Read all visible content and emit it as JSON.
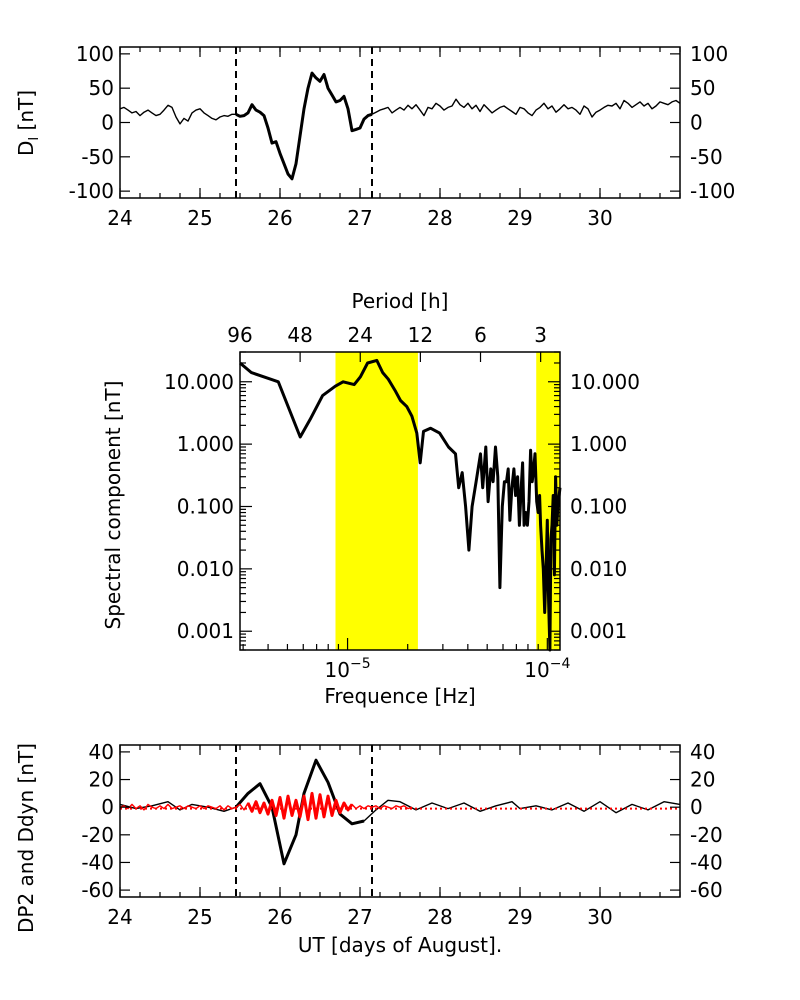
{
  "chart_data": [
    {
      "type": "line",
      "ylabel": "D_I [nT]",
      "ylabel_main": "D",
      "ylabel_sub": "I",
      "ylabel_unit": "[nT]",
      "xlim": [
        24,
        31
      ],
      "ylim": [
        -110,
        110
      ],
      "xticks": [
        24,
        25,
        26,
        27,
        28,
        29,
        30
      ],
      "xtick_labels": [
        "24",
        "25",
        "26",
        "27",
        "28",
        "29",
        "30"
      ],
      "yticks": [
        100,
        50,
        0,
        -50,
        -100
      ],
      "ytick_labels": [
        "100",
        "50",
        "0",
        "-50",
        "-100"
      ],
      "vlines": [
        25.45,
        27.15
      ],
      "series": [
        {
          "color": "#000000",
          "x": [
            24.0,
            24.05,
            24.1,
            24.15,
            24.2,
            24.25,
            24.3,
            24.35,
            24.4,
            24.45,
            24.5,
            24.55,
            24.6,
            24.65,
            24.7,
            24.75,
            24.8,
            24.85,
            24.9,
            24.95,
            25.0,
            25.05,
            25.1,
            25.15,
            25.2,
            25.25,
            25.3,
            25.35,
            25.4,
            25.45,
            25.5,
            25.55,
            25.6,
            25.65,
            25.7,
            25.75,
            25.8,
            25.85,
            25.9,
            25.95,
            26.0,
            26.05,
            26.1,
            26.15,
            26.2,
            26.25,
            26.3,
            26.35,
            26.4,
            26.45,
            26.5,
            26.55,
            26.6,
            26.65,
            26.7,
            26.75,
            26.8,
            26.85,
            26.9,
            26.95,
            27.0,
            27.05,
            27.1,
            27.15,
            27.2,
            27.25,
            27.3,
            27.35,
            27.4,
            27.45,
            27.5,
            27.55,
            27.6,
            27.65,
            27.7,
            27.75,
            27.8,
            27.85,
            27.9,
            27.95,
            28.0,
            28.05,
            28.1,
            28.15,
            28.2,
            28.25,
            28.3,
            28.35,
            28.4,
            28.45,
            28.5,
            28.55,
            28.6,
            28.65,
            28.7,
            28.75,
            28.8,
            28.85,
            28.9,
            28.95,
            29.0,
            29.05,
            29.1,
            29.15,
            29.2,
            29.25,
            29.3,
            29.35,
            29.4,
            29.45,
            29.5,
            29.55,
            29.6,
            29.65,
            29.7,
            29.75,
            29.8,
            29.85,
            29.9,
            29.95,
            30.0,
            30.05,
            30.1,
            30.15,
            30.2,
            30.25,
            30.3,
            30.35,
            30.4,
            30.45,
            30.5,
            30.55,
            30.6,
            30.65,
            30.7,
            30.75,
            30.8,
            30.85,
            30.9,
            30.95,
            31.0
          ],
          "y": [
            20,
            22,
            18,
            14,
            16,
            10,
            15,
            18,
            14,
            10,
            12,
            18,
            25,
            22,
            8,
            -2,
            6,
            2,
            14,
            18,
            20,
            14,
            10,
            6,
            4,
            8,
            10,
            9,
            12,
            12,
            9,
            10,
            14,
            26,
            18,
            15,
            10,
            -8,
            -30,
            -28,
            -45,
            -60,
            -75,
            -82,
            -60,
            -20,
            20,
            50,
            72,
            65,
            60,
            70,
            50,
            40,
            30,
            32,
            38,
            20,
            -12,
            -10,
            -8,
            5,
            10,
            12,
            15,
            18,
            20,
            22,
            14,
            18,
            22,
            18,
            25,
            20,
            26,
            18,
            10,
            22,
            20,
            28,
            24,
            18,
            22,
            24,
            34,
            26,
            22,
            28,
            20,
            25,
            16,
            26,
            20,
            14,
            18,
            22,
            24,
            20,
            16,
            12,
            22,
            20,
            14,
            10,
            18,
            22,
            28,
            20,
            24,
            15,
            20,
            26,
            20,
            22,
            18,
            12,
            24,
            20,
            8,
            15,
            18,
            22,
            25,
            24,
            28,
            20,
            32,
            28,
            22,
            26,
            30,
            24,
            28,
            20,
            24,
            30,
            28,
            26,
            30,
            32,
            28
          ]
        }
      ]
    },
    {
      "type": "line",
      "ylabel": "Spectral component [nT]",
      "xlabel": "Frequence [Hz]",
      "xlabel_top": "Period [h]",
      "xscale": "log",
      "yscale": "log",
      "xlim": [
        2.894e-06,
        0.00011574
      ],
      "ylim": [
        0.0005,
        30
      ],
      "yticks": [
        10,
        1,
        0.1,
        0.01,
        0.001
      ],
      "ytick_labels": [
        "10.000",
        "1.000",
        "0.100",
        "0.010",
        "0.001"
      ],
      "xticks": [
        1e-05,
        0.0001
      ],
      "xtick_labels": [
        "10",
        "10"
      ],
      "xtick_exp": "−5,−4",
      "xtick_exponents": [
        "−5",
        "−4"
      ],
      "top_ticks_hours": [
        96,
        48,
        24,
        12,
        6,
        3
      ],
      "top_tick_labels": [
        "96",
        "48",
        "24",
        "12",
        "6",
        "3"
      ],
      "shaded_bands": [
        {
          "x0": 8.7e-06,
          "x1": 2.25e-05,
          "color": "#ffff00"
        },
        {
          "x0": 8.8e-05,
          "x1": 0.00011574,
          "color": "#ffff00"
        }
      ],
      "series": [
        {
          "color": "#000000",
          "x": [
            2.894e-06,
            3.3e-06,
            4.5e-06,
            5.79e-06,
            6.5e-06,
            7.5e-06,
            8.68e-06,
            9.5e-06,
            1.08e-05,
            1.16e-05,
            1.26e-05,
            1.4e-05,
            1.5e-05,
            1.6e-05,
            1.74e-05,
            1.84e-05,
            1.98e-05,
            2.1e-05,
            2.22e-05,
            2.31e-05,
            2.4e-05,
            2.6e-05,
            2.89e-05,
            3.2e-05,
            3.47e-05,
            3.6e-05,
            3.75e-05,
            3.9e-05,
            4.05e-05,
            4.2e-05,
            4.4e-05,
            4.63e-05,
            4.75e-05,
            4.92e-05,
            5.05e-05,
            5.21e-05,
            5.35e-05,
            5.5e-05,
            5.65e-05,
            5.79e-05,
            5.95e-05,
            6.1e-05,
            6.25e-05,
            6.37e-05,
            6.5e-05,
            6.65e-05,
            6.8e-05,
            6.94e-05,
            7.1e-05,
            7.25e-05,
            7.4e-05,
            7.52e-05,
            7.65e-05,
            7.8e-05,
            7.95e-05,
            8.1e-05,
            8.25e-05,
            8.4e-05,
            8.55e-05,
            8.68e-05,
            8.85e-05,
            9e-05,
            9.15e-05,
            9.26e-05,
            9.4e-05,
            9.55e-05,
            9.7e-05,
            9.84e-05,
            0.0001,
            0.0001015,
            0.000103,
            0.0001042,
            0.0001055,
            0.000107,
            0.0001085,
            0.00011,
            0.0001115,
            0.000113,
            0.00011574
          ],
          "y": [
            20,
            14,
            10,
            1.3,
            2.5,
            6,
            8.5,
            10,
            9,
            12,
            20,
            22,
            14,
            11,
            7,
            5,
            4,
            2.8,
            1.5,
            0.5,
            1.6,
            1.8,
            1.5,
            0.9,
            0.7,
            0.2,
            0.35,
            0.1,
            0.02,
            0.1,
            0.25,
            0.7,
            0.2,
            0.9,
            0.12,
            0.4,
            0.25,
            0.9,
            0.3,
            0.005,
            0.1,
            0.25,
            0.25,
            0.4,
            0.06,
            0.2,
            0.4,
            0.15,
            0.3,
            0.05,
            0.2,
            0.5,
            0.05,
            0.08,
            0.05,
            0.12,
            0.8,
            0.25,
            0.4,
            0.7,
            0.12,
            0.08,
            0.15,
            0.05,
            0.02,
            0.01,
            0.002,
            0.008,
            0.06,
            0.003,
            0.0005,
            0.03,
            0.05,
            0.15,
            0.008,
            0.3,
            0.05,
            0.1,
            0.2
          ]
        }
      ]
    },
    {
      "type": "line",
      "ylabel": "DP2 and Ddyn [nT]",
      "xlabel": "UT [days of August].",
      "xlim": [
        24,
        31
      ],
      "ylim": [
        -65,
        45
      ],
      "xticks": [
        24,
        25,
        26,
        27,
        28,
        29,
        30
      ],
      "xtick_labels": [
        "24",
        "25",
        "26",
        "27",
        "28",
        "29",
        "30"
      ],
      "yticks": [
        40,
        20,
        0,
        -20,
        -40,
        -60
      ],
      "ytick_labels": [
        "40",
        "20",
        "0",
        "-20",
        "-40",
        "-60"
      ],
      "vlines": [
        25.45,
        27.15
      ],
      "series": [
        {
          "color": "#000000",
          "x": [
            24.0,
            24.2,
            24.4,
            24.6,
            24.75,
            24.9,
            25.1,
            25.3,
            25.45,
            25.6,
            25.75,
            25.9,
            26.05,
            26.2,
            26.3,
            26.45,
            26.6,
            26.75,
            26.9,
            27.05,
            27.2,
            27.35,
            27.5,
            27.7,
            27.9,
            28.1,
            28.3,
            28.5,
            28.7,
            28.9,
            29.0,
            29.2,
            29.4,
            29.6,
            29.8,
            30.0,
            30.2,
            30.4,
            30.6,
            30.8,
            31.0
          ],
          "y": [
            2,
            -1,
            1,
            4,
            -2,
            2,
            0,
            -3,
            0,
            10,
            17,
            0,
            -41,
            -20,
            10,
            34,
            18,
            -5,
            -12,
            -10,
            -2,
            5,
            4,
            -2,
            3,
            -1,
            3,
            -3,
            1,
            4,
            -1,
            1,
            -2,
            3,
            -3,
            4,
            -4,
            2,
            -2,
            4,
            2
          ]
        },
        {
          "color": "#ff0000",
          "x": [
            24.0,
            24.05,
            24.1,
            24.15,
            24.2,
            24.25,
            24.3,
            24.35,
            24.4,
            24.45,
            24.5,
            24.55,
            24.6,
            24.65,
            24.7,
            24.75,
            24.8,
            24.85,
            24.9,
            24.95,
            25.0,
            25.05,
            25.1,
            25.15,
            25.2,
            25.25,
            25.3,
            25.35,
            25.4,
            25.45,
            25.5,
            25.55,
            25.6,
            25.65,
            25.7,
            25.75,
            25.8,
            25.85,
            25.9,
            25.95,
            26.0,
            26.05,
            26.1,
            26.15,
            26.2,
            26.25,
            26.3,
            26.35,
            26.4,
            26.45,
            26.5,
            26.55,
            26.6,
            26.65,
            26.7,
            26.75,
            26.8,
            26.85,
            26.9,
            26.95,
            27.0,
            27.05,
            27.1,
            27.15,
            27.2,
            27.25,
            27.3,
            27.35,
            27.4,
            27.45,
            27.5,
            27.55,
            27.6,
            27.65
          ],
          "y": [
            0,
            1,
            -1,
            2,
            -1,
            1,
            -2,
            2,
            0,
            -1,
            1,
            -1,
            2,
            -1,
            0,
            1,
            -1,
            1,
            0,
            -1,
            1,
            -1,
            1,
            0,
            -1,
            1,
            -2,
            1,
            -1,
            0,
            2,
            -2,
            3,
            -3,
            4,
            -4,
            3,
            -5,
            5,
            -6,
            7,
            -8,
            8,
            -6,
            5,
            -7,
            8,
            -9,
            10,
            -8,
            9,
            -7,
            8,
            -6,
            5,
            -4,
            3,
            -2,
            2,
            -1,
            1,
            -1,
            1,
            0,
            1,
            -1,
            1,
            0,
            -1,
            1,
            0,
            1,
            -1,
            0
          ]
        },
        {
          "color": "#ff0000",
          "style": "dotted",
          "x": [
            24.0,
            31.0
          ],
          "y": [
            -1,
            -1
          ]
        }
      ]
    }
  ]
}
